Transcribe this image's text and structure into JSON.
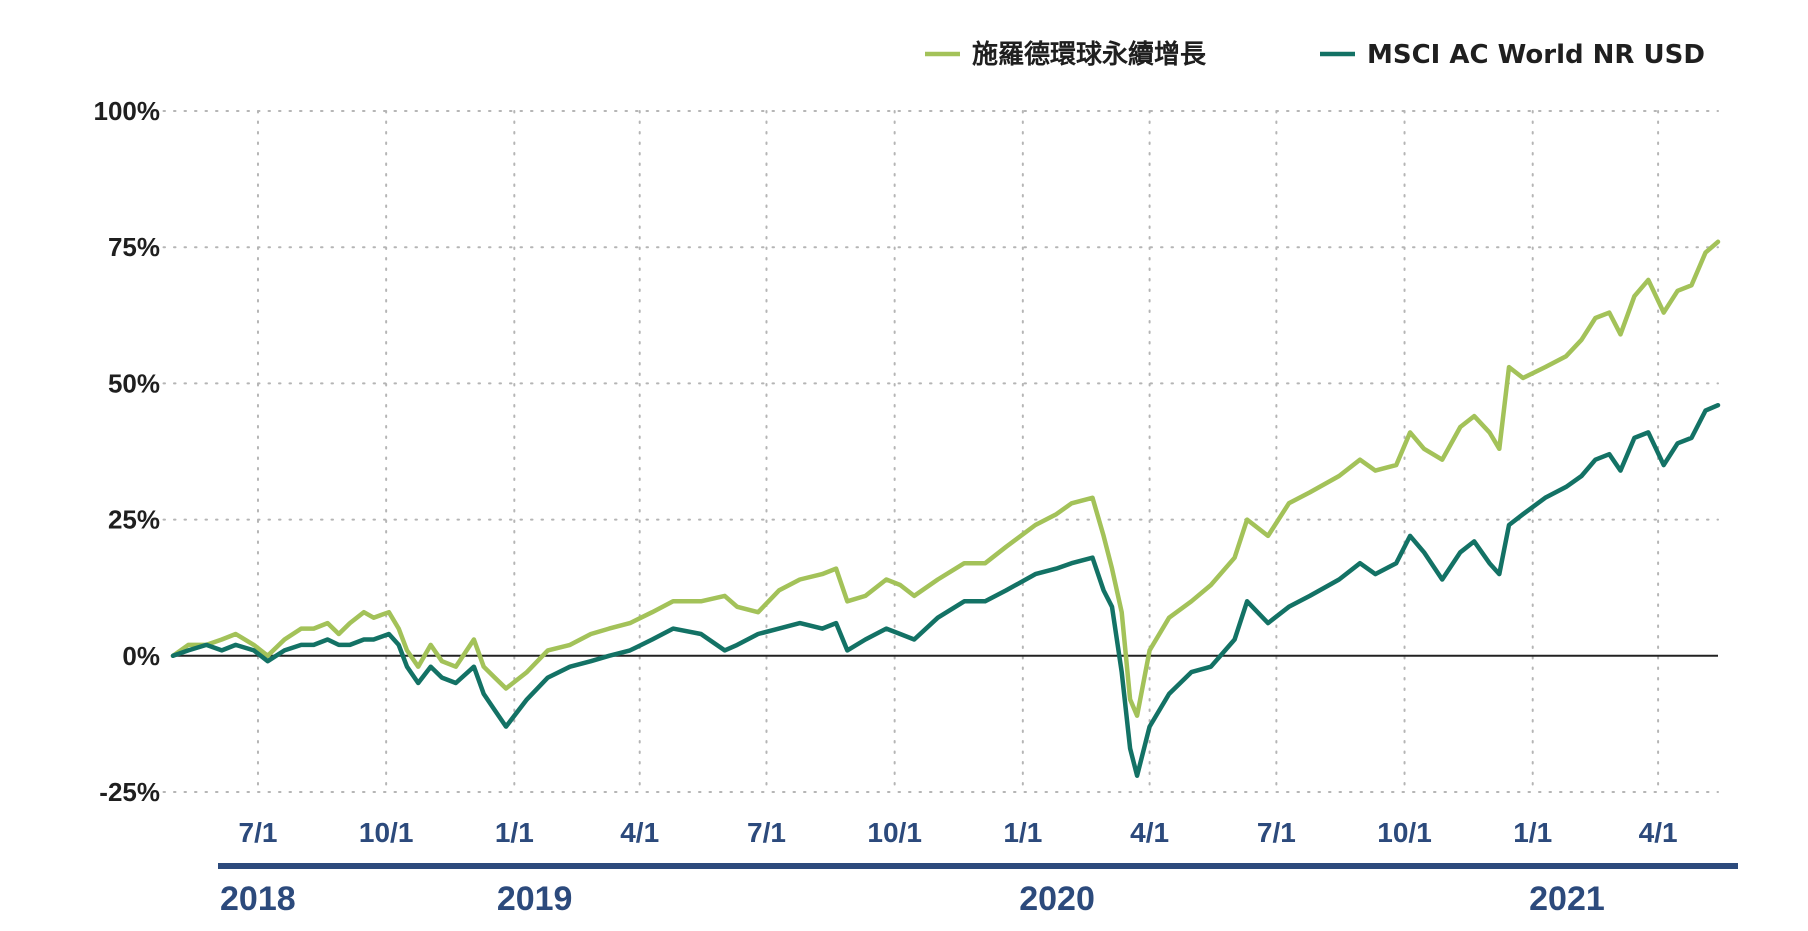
{
  "chart_data": {
    "type": "line",
    "title": "",
    "xlabel": "",
    "ylabel": "",
    "ylim": [
      -25,
      100
    ],
    "yticks": [
      -25,
      0,
      25,
      50,
      75,
      100
    ],
    "ytick_labels": [
      "-25%",
      "0%",
      "25%",
      "50%",
      "75%",
      "100%"
    ],
    "grid": "dotted",
    "legend_position": "top-right",
    "x_range": [
      "2018-05-01",
      "2021-05-14"
    ],
    "x_ticks": [
      {
        "date": "2018-07-01",
        "label": "7/1"
      },
      {
        "date": "2018-10-01",
        "label": "10/1"
      },
      {
        "date": "2019-01-01",
        "label": "1/1"
      },
      {
        "date": "2019-04-01",
        "label": "4/1"
      },
      {
        "date": "2019-07-01",
        "label": "7/1"
      },
      {
        "date": "2019-10-01",
        "label": "10/1"
      },
      {
        "date": "2020-01-01",
        "label": "1/1"
      },
      {
        "date": "2020-04-01",
        "label": "4/1"
      },
      {
        "date": "2020-07-01",
        "label": "7/1"
      },
      {
        "date": "2020-10-01",
        "label": "10/1"
      },
      {
        "date": "2021-01-01",
        "label": "1/1"
      },
      {
        "date": "2021-04-01",
        "label": "4/1"
      }
    ],
    "year_groups": [
      {
        "label": "2018",
        "start": "2018-05-01",
        "end": "2018-12-10"
      },
      {
        "label": "2019",
        "start": "2018-12-18",
        "end": "2019-12-20"
      },
      {
        "label": "2020",
        "start": "2019-12-28",
        "end": "2020-12-20"
      },
      {
        "label": "2021",
        "start": "2020-12-28",
        "end": "2021-05-14"
      }
    ],
    "series": [
      {
        "name": "施羅德環球永續增長",
        "color": "#a3c259",
        "points": [
          [
            "2018-05-01",
            0
          ],
          [
            "2018-05-12",
            2
          ],
          [
            "2018-05-25",
            2
          ],
          [
            "2018-06-05",
            3
          ],
          [
            "2018-06-15",
            4
          ],
          [
            "2018-06-28",
            2
          ],
          [
            "2018-07-08",
            0
          ],
          [
            "2018-07-20",
            3
          ],
          [
            "2018-08-01",
            5
          ],
          [
            "2018-08-10",
            5
          ],
          [
            "2018-08-20",
            6
          ],
          [
            "2018-08-28",
            4
          ],
          [
            "2018-09-05",
            6
          ],
          [
            "2018-09-15",
            8
          ],
          [
            "2018-09-22",
            7
          ],
          [
            "2018-10-03",
            8
          ],
          [
            "2018-10-10",
            5
          ],
          [
            "2018-10-16",
            1
          ],
          [
            "2018-10-24",
            -2
          ],
          [
            "2018-11-02",
            2
          ],
          [
            "2018-11-10",
            -1
          ],
          [
            "2018-11-20",
            -2
          ],
          [
            "2018-12-03",
            3
          ],
          [
            "2018-12-10",
            -2
          ],
          [
            "2018-12-18",
            -4
          ],
          [
            "2018-12-26",
            -6
          ],
          [
            "2019-01-10",
            -3
          ],
          [
            "2019-01-25",
            1
          ],
          [
            "2019-02-10",
            2
          ],
          [
            "2019-02-25",
            4
          ],
          [
            "2019-03-10",
            5
          ],
          [
            "2019-03-25",
            6
          ],
          [
            "2019-04-10",
            8
          ],
          [
            "2019-04-25",
            10
          ],
          [
            "2019-05-15",
            10
          ],
          [
            "2019-06-01",
            11
          ],
          [
            "2019-06-10",
            9
          ],
          [
            "2019-06-25",
            8
          ],
          [
            "2019-07-10",
            12
          ],
          [
            "2019-07-25",
            14
          ],
          [
            "2019-08-10",
            15
          ],
          [
            "2019-08-20",
            16
          ],
          [
            "2019-08-28",
            10
          ],
          [
            "2019-09-10",
            11
          ],
          [
            "2019-09-25",
            14
          ],
          [
            "2019-10-05",
            13
          ],
          [
            "2019-10-15",
            11
          ],
          [
            "2019-11-01",
            14
          ],
          [
            "2019-11-20",
            17
          ],
          [
            "2019-12-05",
            17
          ],
          [
            "2019-12-20",
            20
          ],
          [
            "2020-01-10",
            24
          ],
          [
            "2020-01-25",
            26
          ],
          [
            "2020-02-05",
            28
          ],
          [
            "2020-02-20",
            29
          ],
          [
            "2020-02-28",
            22
          ],
          [
            "2020-03-05",
            16
          ],
          [
            "2020-03-12",
            8
          ],
          [
            "2020-03-18",
            -8
          ],
          [
            "2020-03-23",
            -11
          ],
          [
            "2020-04-01",
            1
          ],
          [
            "2020-04-15",
            7
          ],
          [
            "2020-05-01",
            10
          ],
          [
            "2020-05-15",
            13
          ],
          [
            "2020-06-01",
            18
          ],
          [
            "2020-06-10",
            25
          ],
          [
            "2020-06-25",
            22
          ],
          [
            "2020-07-10",
            28
          ],
          [
            "2020-07-25",
            30
          ],
          [
            "2020-08-15",
            33
          ],
          [
            "2020-08-30",
            36
          ],
          [
            "2020-09-10",
            34
          ],
          [
            "2020-09-25",
            35
          ],
          [
            "2020-10-05",
            41
          ],
          [
            "2020-10-15",
            38
          ],
          [
            "2020-10-28",
            36
          ],
          [
            "2020-11-10",
            42
          ],
          [
            "2020-11-20",
            44
          ],
          [
            "2020-12-01",
            41
          ],
          [
            "2020-12-08",
            38
          ],
          [
            "2020-12-15",
            53
          ],
          [
            "2020-12-25",
            51
          ],
          [
            "2021-01-10",
            53
          ],
          [
            "2021-01-25",
            55
          ],
          [
            "2021-02-05",
            58
          ],
          [
            "2021-02-15",
            62
          ],
          [
            "2021-02-25",
            63
          ],
          [
            "2021-03-05",
            59
          ],
          [
            "2021-03-15",
            66
          ],
          [
            "2021-03-25",
            69
          ],
          [
            "2021-04-05",
            63
          ],
          [
            "2021-04-15",
            67
          ],
          [
            "2021-04-25",
            68
          ],
          [
            "2021-05-05",
            74
          ],
          [
            "2021-05-14",
            76
          ]
        ]
      },
      {
        "name": "MSCI AC World NR USD",
        "color": "#137265",
        "points": [
          [
            "2018-05-01",
            0
          ],
          [
            "2018-05-12",
            1
          ],
          [
            "2018-05-25",
            2
          ],
          [
            "2018-06-05",
            1
          ],
          [
            "2018-06-15",
            2
          ],
          [
            "2018-06-28",
            1
          ],
          [
            "2018-07-08",
            -1
          ],
          [
            "2018-07-20",
            1
          ],
          [
            "2018-08-01",
            2
          ],
          [
            "2018-08-10",
            2
          ],
          [
            "2018-08-20",
            3
          ],
          [
            "2018-08-28",
            2
          ],
          [
            "2018-09-05",
            2
          ],
          [
            "2018-09-15",
            3
          ],
          [
            "2018-09-22",
            3
          ],
          [
            "2018-10-03",
            4
          ],
          [
            "2018-10-10",
            2
          ],
          [
            "2018-10-16",
            -2
          ],
          [
            "2018-10-24",
            -5
          ],
          [
            "2018-11-02",
            -2
          ],
          [
            "2018-11-10",
            -4
          ],
          [
            "2018-11-20",
            -5
          ],
          [
            "2018-12-03",
            -2
          ],
          [
            "2018-12-10",
            -7
          ],
          [
            "2018-12-18",
            -10
          ],
          [
            "2018-12-26",
            -13
          ],
          [
            "2019-01-10",
            -8
          ],
          [
            "2019-01-25",
            -4
          ],
          [
            "2019-02-10",
            -2
          ],
          [
            "2019-02-25",
            -1
          ],
          [
            "2019-03-10",
            0
          ],
          [
            "2019-03-25",
            1
          ],
          [
            "2019-04-10",
            3
          ],
          [
            "2019-04-25",
            5
          ],
          [
            "2019-05-15",
            4
          ],
          [
            "2019-06-01",
            1
          ],
          [
            "2019-06-10",
            2
          ],
          [
            "2019-06-25",
            4
          ],
          [
            "2019-07-10",
            5
          ],
          [
            "2019-07-25",
            6
          ],
          [
            "2019-08-10",
            5
          ],
          [
            "2019-08-20",
            6
          ],
          [
            "2019-08-28",
            1
          ],
          [
            "2019-09-10",
            3
          ],
          [
            "2019-09-25",
            5
          ],
          [
            "2019-10-05",
            4
          ],
          [
            "2019-10-15",
            3
          ],
          [
            "2019-11-01",
            7
          ],
          [
            "2019-11-20",
            10
          ],
          [
            "2019-12-05",
            10
          ],
          [
            "2019-12-20",
            12
          ],
          [
            "2020-01-10",
            15
          ],
          [
            "2020-01-25",
            16
          ],
          [
            "2020-02-05",
            17
          ],
          [
            "2020-02-20",
            18
          ],
          [
            "2020-02-28",
            12
          ],
          [
            "2020-03-05",
            9
          ],
          [
            "2020-03-12",
            -3
          ],
          [
            "2020-03-18",
            -17
          ],
          [
            "2020-03-23",
            -22
          ],
          [
            "2020-04-01",
            -13
          ],
          [
            "2020-04-15",
            -7
          ],
          [
            "2020-05-01",
            -3
          ],
          [
            "2020-05-15",
            -2
          ],
          [
            "2020-06-01",
            3
          ],
          [
            "2020-06-10",
            10
          ],
          [
            "2020-06-25",
            6
          ],
          [
            "2020-07-10",
            9
          ],
          [
            "2020-07-25",
            11
          ],
          [
            "2020-08-15",
            14
          ],
          [
            "2020-08-30",
            17
          ],
          [
            "2020-09-10",
            15
          ],
          [
            "2020-09-25",
            17
          ],
          [
            "2020-10-05",
            22
          ],
          [
            "2020-10-15",
            19
          ],
          [
            "2020-10-28",
            14
          ],
          [
            "2020-11-10",
            19
          ],
          [
            "2020-11-20",
            21
          ],
          [
            "2020-12-01",
            17
          ],
          [
            "2020-12-08",
            15
          ],
          [
            "2020-12-15",
            24
          ],
          [
            "2020-12-25",
            26
          ],
          [
            "2021-01-10",
            29
          ],
          [
            "2021-01-25",
            31
          ],
          [
            "2021-02-05",
            33
          ],
          [
            "2021-02-15",
            36
          ],
          [
            "2021-02-25",
            37
          ],
          [
            "2021-03-05",
            34
          ],
          [
            "2021-03-15",
            40
          ],
          [
            "2021-03-25",
            41
          ],
          [
            "2021-04-05",
            35
          ],
          [
            "2021-04-15",
            39
          ],
          [
            "2021-04-25",
            40
          ],
          [
            "2021-05-05",
            45
          ],
          [
            "2021-05-14",
            46
          ]
        ]
      }
    ]
  }
}
